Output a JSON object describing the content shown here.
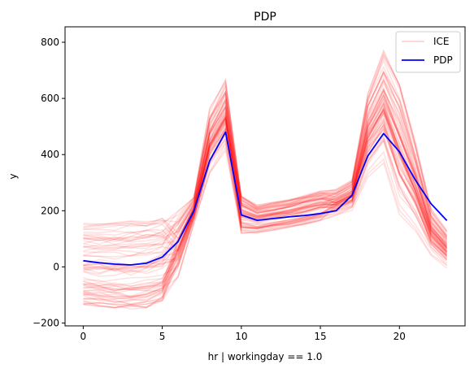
{
  "chart_data": {
    "type": "line",
    "title": "PDP",
    "xlabel": "hr | workingday == 1.0",
    "ylabel": "y",
    "xlim": [
      -1.15,
      24.15
    ],
    "ylim": [
      -210,
      855
    ],
    "xticks": [
      0,
      5,
      10,
      15,
      20
    ],
    "xtick_labels": [
      "0",
      "5",
      "10",
      "15",
      "20"
    ],
    "yticks": [
      -200,
      0,
      200,
      400,
      600,
      800
    ],
    "ytick_labels": [
      "−200",
      "0",
      "200",
      "400",
      "600",
      "800"
    ],
    "grid": false,
    "legend_position": "top-right",
    "x": [
      0,
      1,
      2,
      3,
      4,
      5,
      6,
      7,
      8,
      9,
      10,
      11,
      12,
      13,
      14,
      15,
      16,
      17,
      18,
      19,
      20,
      21,
      22,
      23
    ],
    "series": [
      {
        "name": "PDP",
        "role": "pdp",
        "color": "#0000ff",
        "values": [
          22,
          15,
          10,
          7,
          13,
          35,
          90,
          200,
          378,
          480,
          185,
          166,
          172,
          178,
          183,
          190,
          200,
          255,
          395,
          475,
          410,
          310,
          225,
          165
        ]
      },
      {
        "name": "ICE",
        "role": "ice",
        "color": "#ff0000",
        "opacity": 0.12,
        "values_summary": "one faint red line per sample; curves span from about -140 to about 800"
      }
    ],
    "ice_envelope": {
      "min": [
        -135,
        -140,
        -145,
        -150,
        -145,
        -120,
        -50,
        150,
        320,
        410,
        120,
        120,
        130,
        140,
        150,
        165,
        180,
        200,
        320,
        370,
        180,
        120,
        40,
        -5
      ],
      "max": [
        155,
        158,
        160,
        165,
        170,
        175,
        215,
        260,
        580,
        690,
        255,
        220,
        230,
        240,
        255,
        270,
        285,
        320,
        650,
        800,
        700,
        480,
        220,
        140
      ]
    },
    "legend": [
      {
        "label": "ICE",
        "color": "#ff0000"
      },
      {
        "label": "PDP",
        "color": "#0000ff"
      }
    ]
  }
}
